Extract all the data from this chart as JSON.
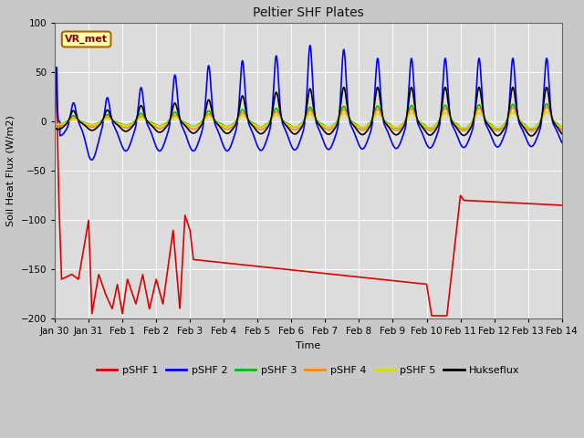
{
  "title": "Peltier SHF Plates",
  "xlabel": "Time",
  "ylabel": "Soil Heat Flux (W/m2)",
  "ylim": [
    -200,
    100
  ],
  "bg_color": "#c8c8c8",
  "plot_bg_color": "#dcdcdc",
  "annotation_text": "VR_met",
  "annotation_bg": "#ffffaa",
  "annotation_border": "#aa6600",
  "series": [
    {
      "label": "pSHF 1",
      "color": "#dd0000",
      "lw": 1.2
    },
    {
      "label": "pSHF 2",
      "color": "#0000ff",
      "lw": 1.2
    },
    {
      "label": "pSHF 3",
      "color": "#00bb00",
      "lw": 1.2
    },
    {
      "label": "pSHF 4",
      "color": "#ff8800",
      "lw": 1.2
    },
    {
      "label": "pSHF 5",
      "color": "#dddd00",
      "lw": 1.2
    },
    {
      "label": "Hukseflux",
      "color": "#000000",
      "lw": 1.2
    }
  ],
  "tick_labels": [
    "Jan 30",
    "Jan 31",
    "Feb 1",
    "Feb 2",
    "Feb 3",
    "Feb 4",
    "Feb 5",
    "Feb 6",
    "Feb 7",
    "Feb 8",
    "Feb 9",
    "Feb 10",
    "Feb 11",
    "Feb 12",
    "Feb 13",
    "Feb 14"
  ],
  "yticks": [
    -200,
    -150,
    -100,
    -50,
    0,
    50,
    100
  ],
  "n_days": 15,
  "pts_per_day": 288
}
